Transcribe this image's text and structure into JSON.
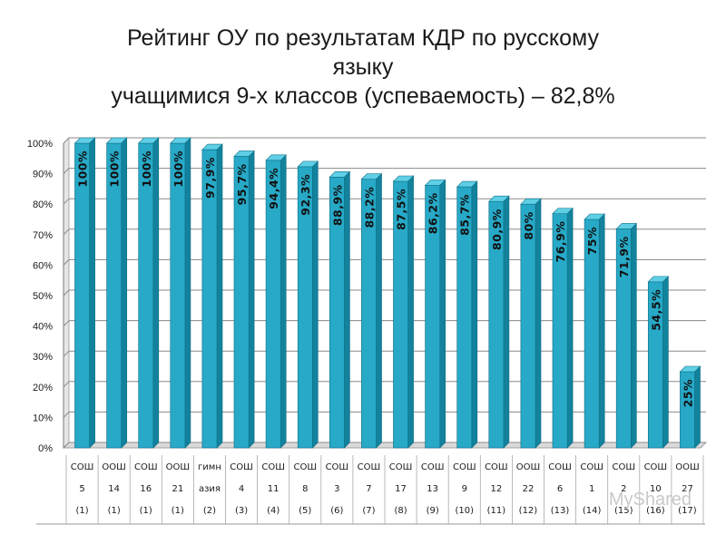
{
  "chart_data": {
    "type": "bar",
    "title_lines": [
      "Рейтинг ОУ по результатам КДР по русскому",
      "языку",
      "учащимися 9-х классов (успеваемость) – 82,8%"
    ],
    "ylim": [
      0,
      100
    ],
    "y_ticks": [
      "0%",
      "10%",
      "20%",
      "30%",
      "40%",
      "50%",
      "60%",
      "70%",
      "80%",
      "90%",
      "100%"
    ],
    "grid": true,
    "categories": [
      [
        "СОШ",
        "5",
        "(1)"
      ],
      [
        "ООШ",
        "14",
        "(1)"
      ],
      [
        "СОШ",
        "16",
        "(1)"
      ],
      [
        "ООШ",
        "21",
        "(1)"
      ],
      [
        "гимн",
        "азия",
        "(2)"
      ],
      [
        "СОШ",
        "4",
        "(3)"
      ],
      [
        "СОШ",
        "11",
        "(4)"
      ],
      [
        "СОШ",
        "8",
        "(5)"
      ],
      [
        "СОШ",
        "3",
        "(6)"
      ],
      [
        "СОШ",
        "7",
        "(7)"
      ],
      [
        "СОШ",
        "17",
        "(8)"
      ],
      [
        "СОШ",
        "13",
        "(9)"
      ],
      [
        "СОШ",
        "9",
        "(10)"
      ],
      [
        "СОШ",
        "12",
        "(11)"
      ],
      [
        "ООШ",
        "22",
        "(12)"
      ],
      [
        "СОШ",
        "6",
        "(13)"
      ],
      [
        "СОШ",
        "1",
        "(14)"
      ],
      [
        "СОШ",
        "2",
        "(15)"
      ],
      [
        "СОШ",
        "10",
        "(16)"
      ],
      [
        "ООШ",
        "27",
        "(17)"
      ]
    ],
    "values": [
      100,
      100,
      100,
      100,
      97.9,
      95.7,
      94.4,
      92.3,
      88.9,
      88.2,
      87.5,
      86.2,
      85.7,
      80.9,
      80,
      76.9,
      75,
      71.9,
      54.5,
      25
    ],
    "data_labels": [
      "100%",
      "100%",
      "100%",
      "100%",
      "97,9%",
      "95,7%",
      "94,4%",
      "92,3%",
      "88,9%",
      "88,2%",
      "87,5%",
      "86,2%",
      "85,7%",
      "80,9%",
      "80%",
      "76,9%",
      "75%",
      "71,9%",
      "54,5%",
      "25%"
    ],
    "bar_color": "#27a9c7",
    "bar_top_color": "#5fcfe6",
    "bar_side_color": "#13829c"
  },
  "watermark": "MyShared"
}
